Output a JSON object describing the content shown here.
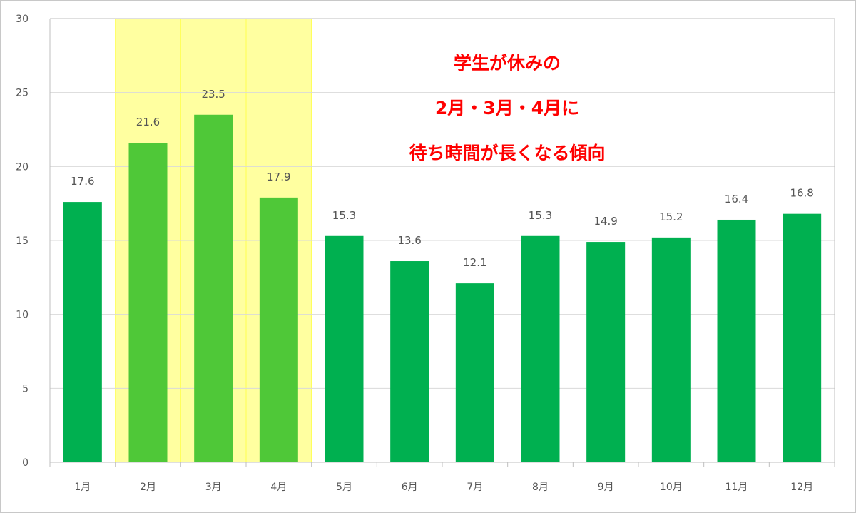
{
  "chart_data": {
    "type": "bar",
    "categories": [
      "1月",
      "2月",
      "3月",
      "4月",
      "5月",
      "6月",
      "7月",
      "8月",
      "9月",
      "10月",
      "11月",
      "12月"
    ],
    "values": [
      17.6,
      21.6,
      23.5,
      17.9,
      15.3,
      13.6,
      12.1,
      15.3,
      14.9,
      15.2,
      16.4,
      16.8
    ],
    "data_labels": [
      "17.6",
      "21.6",
      "23.5",
      "17.9",
      "15.3",
      "13.6",
      "12.1",
      "15.3",
      "14.9",
      "15.2",
      "16.4",
      "16.8"
    ],
    "ylim": [
      0,
      30
    ],
    "yticks": [
      "0",
      "5",
      "10",
      "15",
      "20",
      "25",
      "30"
    ],
    "grid": true,
    "highlighted_categories": [
      "2月",
      "3月",
      "4月"
    ],
    "annotation": {
      "lines": [
        "学生が休みの",
        "2月・3月・4月に",
        "待ち時間が長くなる傾向"
      ]
    },
    "colors": {
      "bar": "#00b050",
      "bar_highlighted": "#4fc838",
      "highlight_band": "#ffffa0",
      "highlight_band_border": "#ffff50",
      "annotation_text": "#ff0000",
      "gridline": "#d9d9d9"
    }
  }
}
